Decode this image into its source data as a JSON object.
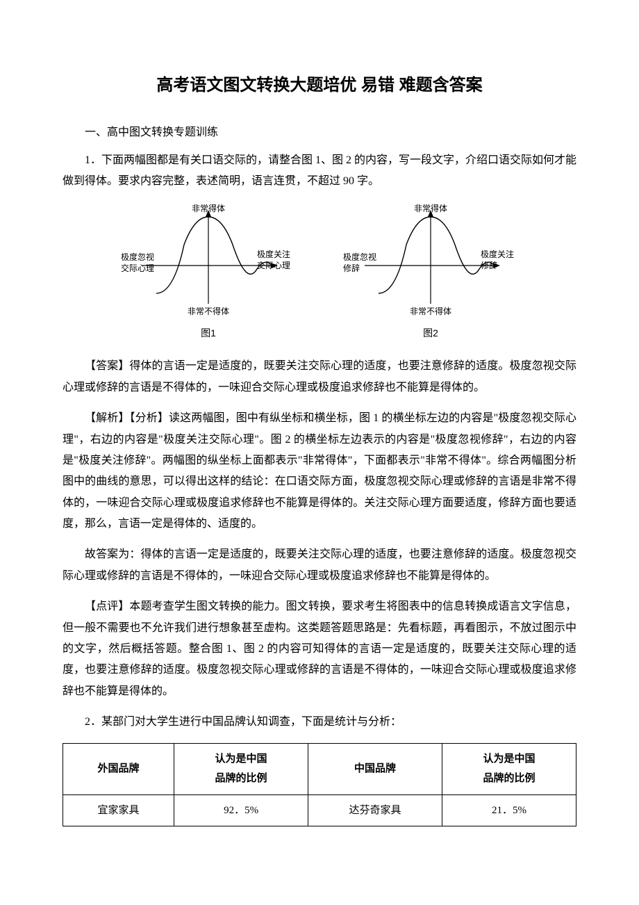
{
  "title": "高考语文图文转换大题培优 易错 难题含答案",
  "section_heading": "一、高中图文转换专题训练",
  "q1": {
    "prompt": "1．下面两幅图都是有关口语交际的，请整合图 1、图 2 的内容，写一段文字，介绍口语交际如何才能做到得体。要求内容完整，表述简明，语言连贯，不超过 90 字。",
    "diagram1": {
      "caption": "图1",
      "top": "非常得体",
      "bottom": "非常不得体",
      "left1": "极度忽视",
      "left2": "交际心理",
      "right1": "极度关注",
      "right2": "交际心理"
    },
    "diagram2": {
      "caption": "图2",
      "top": "非常得体",
      "bottom": "非常不得体",
      "left1": "极度忽视",
      "left2": "修辞",
      "right1": "极度关注",
      "right2": "修辞"
    },
    "answer": "【答案】得体的言语一定是适度的，既要关注交际心理的适度，也要注意修辞的适度。极度忽视交际心理或修辞的言语是不得体的，一味迎合交际心理或极度追求修辞也不能算是得体的。",
    "analysis": "【解析】【分析】读这两幅图，图中有纵坐标和横坐标，图 1 的横坐标左边的内容是\"极度忽视交际心理\"，右边的内容是\"极度关注交际心理\"。图 2 的横坐标左边表示的内容是\"极度忽视修辞\"，右边的内容是\"极度关注修辞\"。两幅图的纵坐标上面都表示\"非常得体\"，下面都表示\"非常不得体\"。综合两幅图分析图中的曲线的意思，可以得出这样的结论：在口语交际方面，极度忽视交际心理或修辞的言语是非常不得体的，一味迎合交际心理或极度追求修辞也不能算是得体的。关注交际心理方面要适度，修辞方面也要适度，那么，言语一定是得体的、适度的。",
    "answer2": "故答案为：得体的言语一定是适度的，既要关注交际心理的适度，也要注意修辞的适度。极度忽视交际心理或修辞的言语是不得体的，一味迎合交际心理或极度追求修辞也不能算是得体的。",
    "comment": "【点评】本题考查学生图文转换的能力。图文转换，要求考生将图表中的信息转换成语言文字信息，但一般不需要也不允许我们进行想象甚至虚构。这类题答题思路是：先看标题，再看图示，不放过图示中的文字，然后概括答题。整合图 1、图 2 的内容可知得体的言语一定是适度的，既要关注交际心理的适度，也要注意修辞的适度。极度忽视交际心理或修辞的言语是不得体的，一味迎合交际心理或极度追求修辞也不能算是得体的。"
  },
  "q2": {
    "prompt": "2．某部门对大学生进行中国品牌认知调查，下面是统计与分析：",
    "table": {
      "columns": [
        "外国品牌",
        "认为是中国\n品牌的比例",
        "中国品牌",
        "认为是中国\n品牌的比例"
      ],
      "rows": [
        [
          "宜家家具",
          "92．5%",
          "达芬奇家具",
          "21．5%"
        ]
      ]
    }
  },
  "styling": {
    "page_bg": "#ffffff",
    "text_color": "#000000",
    "body_fontsize": 16,
    "title_fontsize": 24,
    "table_border_color": "#000000",
    "diagram_line_color": "#000000",
    "curve_color": "#000000"
  }
}
